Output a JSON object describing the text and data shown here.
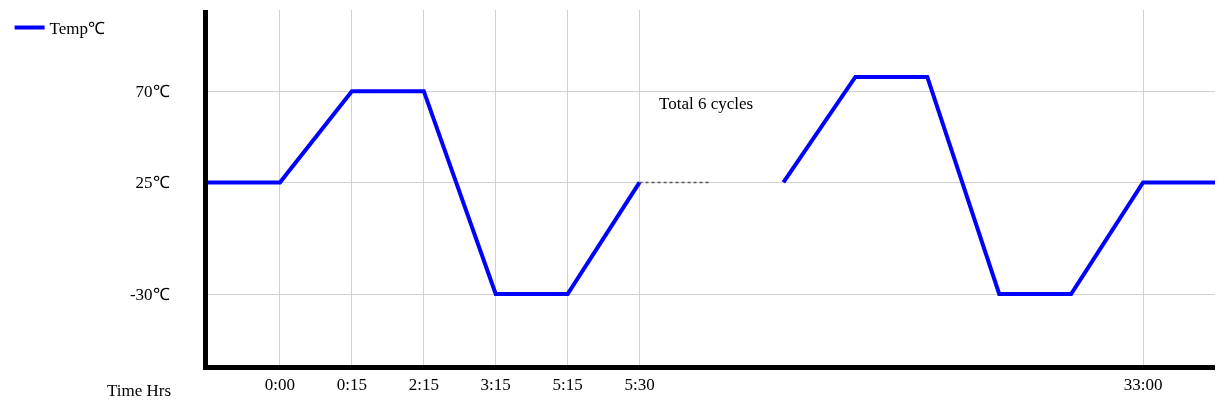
{
  "chart_data": {
    "type": "line",
    "xlabel": "Time Hrs",
    "categories": [
      null,
      "0:00",
      "0:15",
      "2:15",
      "3:15",
      "5:15",
      "5:30",
      null,
      null,
      null,
      null,
      null,
      null,
      "33:00",
      null
    ],
    "series": [
      {
        "name": "Temp℃",
        "color": "#0000ff",
        "values": [
          25,
          25,
          70,
          70,
          -30,
          -30,
          25,
          null,
          25,
          77,
          77,
          -30,
          -30,
          25,
          25
        ]
      },
      {
        "color": "#555555",
        "line_style": "dotted",
        "values": [
          null,
          null,
          null,
          null,
          null,
          null,
          25,
          25,
          null,
          null,
          null,
          null,
          null,
          null,
          null
        ]
      }
    ],
    "ylim": [
      -65,
      110
    ],
    "yticks": [
      {
        "value": 70,
        "label": "70℃"
      },
      {
        "value": 25,
        "label": "25℃"
      },
      {
        "value": -30,
        "label": "-30℃"
      }
    ],
    "grid": true,
    "legend": "top left",
    "marker": "none",
    "annotations": [
      "Total 6 cycles"
    ]
  }
}
